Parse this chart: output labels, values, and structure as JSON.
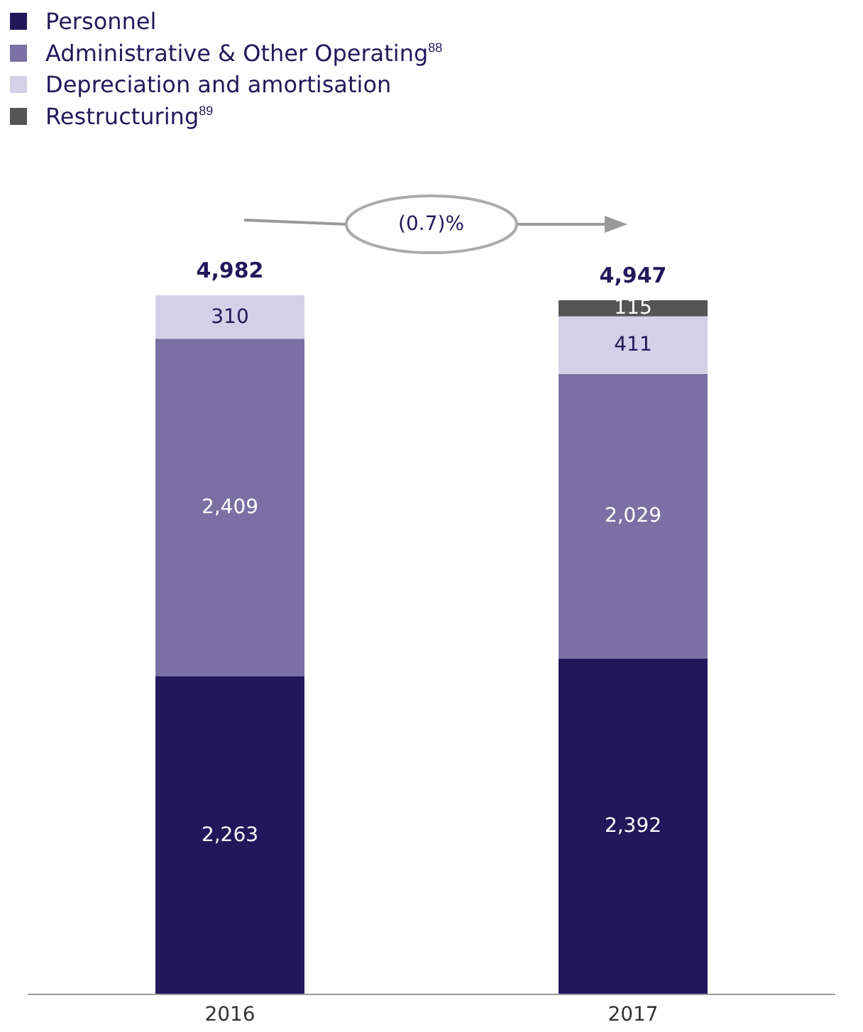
{
  "chart_data": {
    "type": "bar",
    "stacked": true,
    "categories": [
      "2016",
      "2017"
    ],
    "series": [
      {
        "name": "Personnel",
        "color": "#22175a",
        "values": [
          2263,
          2392
        ],
        "value_labels": [
          "2,263",
          "2,392"
        ]
      },
      {
        "name": "Administrative & Other Operating$^{88}$",
        "color": "#7b70a3",
        "values": [
          2409,
          2029
        ],
        "value_labels": [
          "2,409",
          "2,029"
        ]
      },
      {
        "name": "Depreciation and amortisation",
        "color": "#d4d0e7",
        "values": [
          310,
          411
        ],
        "value_labels": [
          "310",
          "411"
        ]
      },
      {
        "name": "Restructuring$^{89}$",
        "color": "#555555",
        "values": [
          null,
          115
        ],
        "value_labels": [
          null,
          "115"
        ]
      }
    ],
    "totals": [
      "4,982",
      "4,947"
    ],
    "legend": "top left",
    "annotations": [
      "(0.7)%"
    ]
  }
}
